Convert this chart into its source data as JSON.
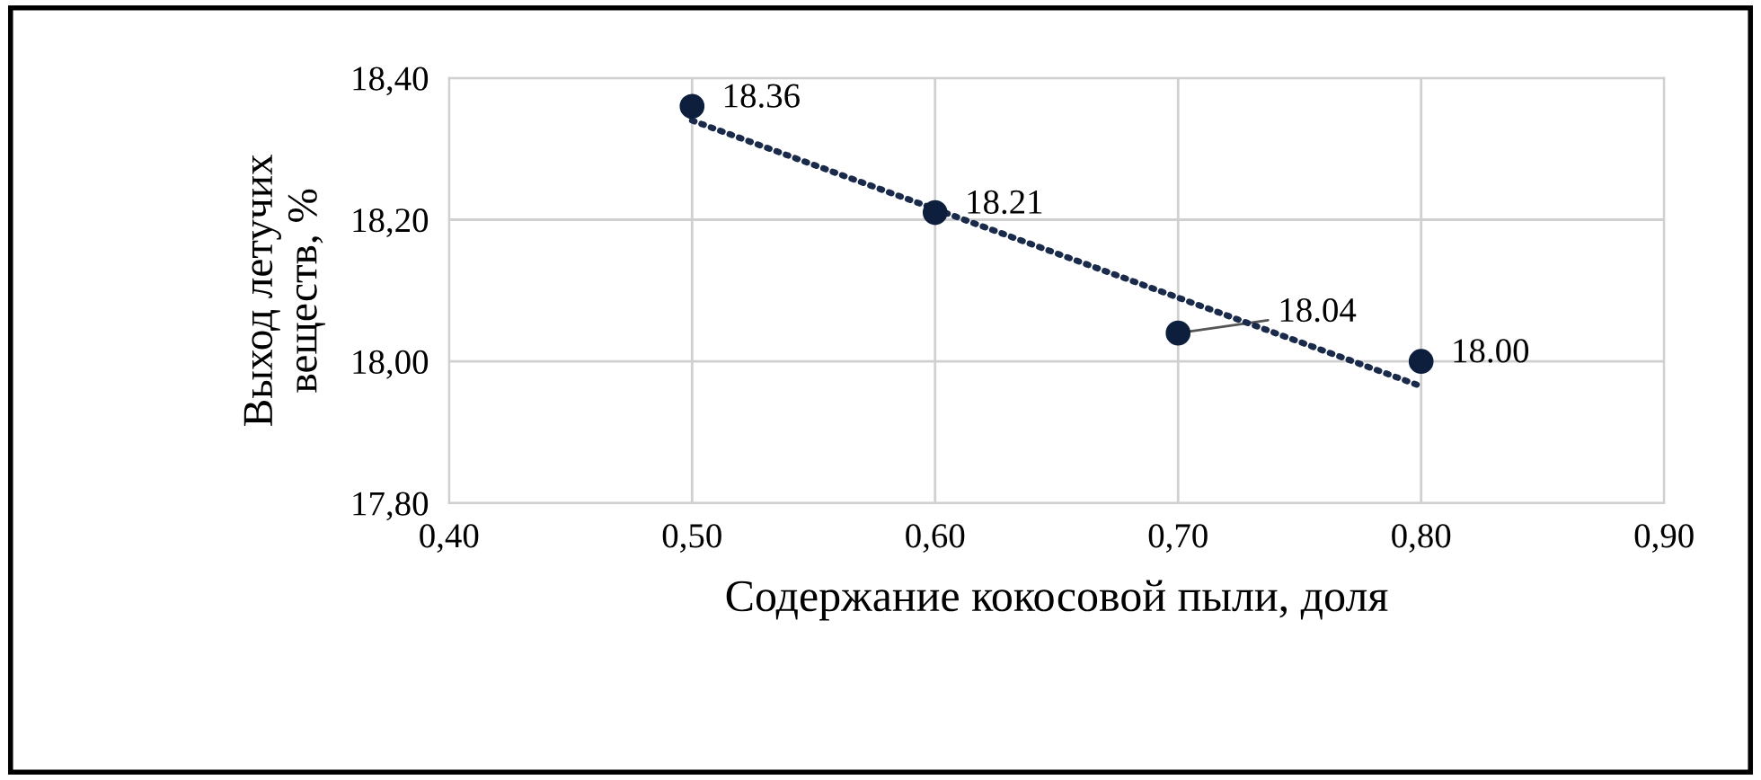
{
  "chart_data": {
    "type": "scatter",
    "xlabel": "Содержание кокосовой пыли, доля",
    "ylabel": "Выход летучих\nвеществ, %",
    "series": [
      {
        "color": "#0d1f3c",
        "x": [
          0.5,
          0.6,
          0.7,
          0.8
        ],
        "values": [
          18.36,
          18.21,
          18.04,
          18.0
        ],
        "value_labels": [
          "18.36",
          "18.21",
          "18.04",
          "18.00"
        ],
        "marker": "circle"
      },
      {
        "type": "line",
        "color": "#1a2a4a",
        "x": [
          0.5,
          0.8
        ],
        "values": [
          18.34,
          17.965
        ],
        "line_style": "dotted",
        "marker": "none"
      }
    ],
    "xlim": [
      0.4,
      0.9
    ],
    "xticks": [
      {
        "value": 0.4,
        "label": "0,40"
      },
      {
        "value": 0.5,
        "label": "0,50"
      },
      {
        "value": 0.6,
        "label": "0,60"
      },
      {
        "value": 0.7,
        "label": "0,70"
      },
      {
        "value": 0.8,
        "label": "0,80"
      },
      {
        "value": 0.9,
        "label": "0,90"
      }
    ],
    "ylim": [
      17.8,
      18.4
    ],
    "yticks": [
      {
        "value": 17.8,
        "label": "17,80"
      },
      {
        "value": 18.0,
        "label": "18,00"
      },
      {
        "value": 18.2,
        "label": "18,20"
      },
      {
        "value": 18.4,
        "label": "18,40"
      }
    ],
    "grid": true,
    "legend": false
  }
}
